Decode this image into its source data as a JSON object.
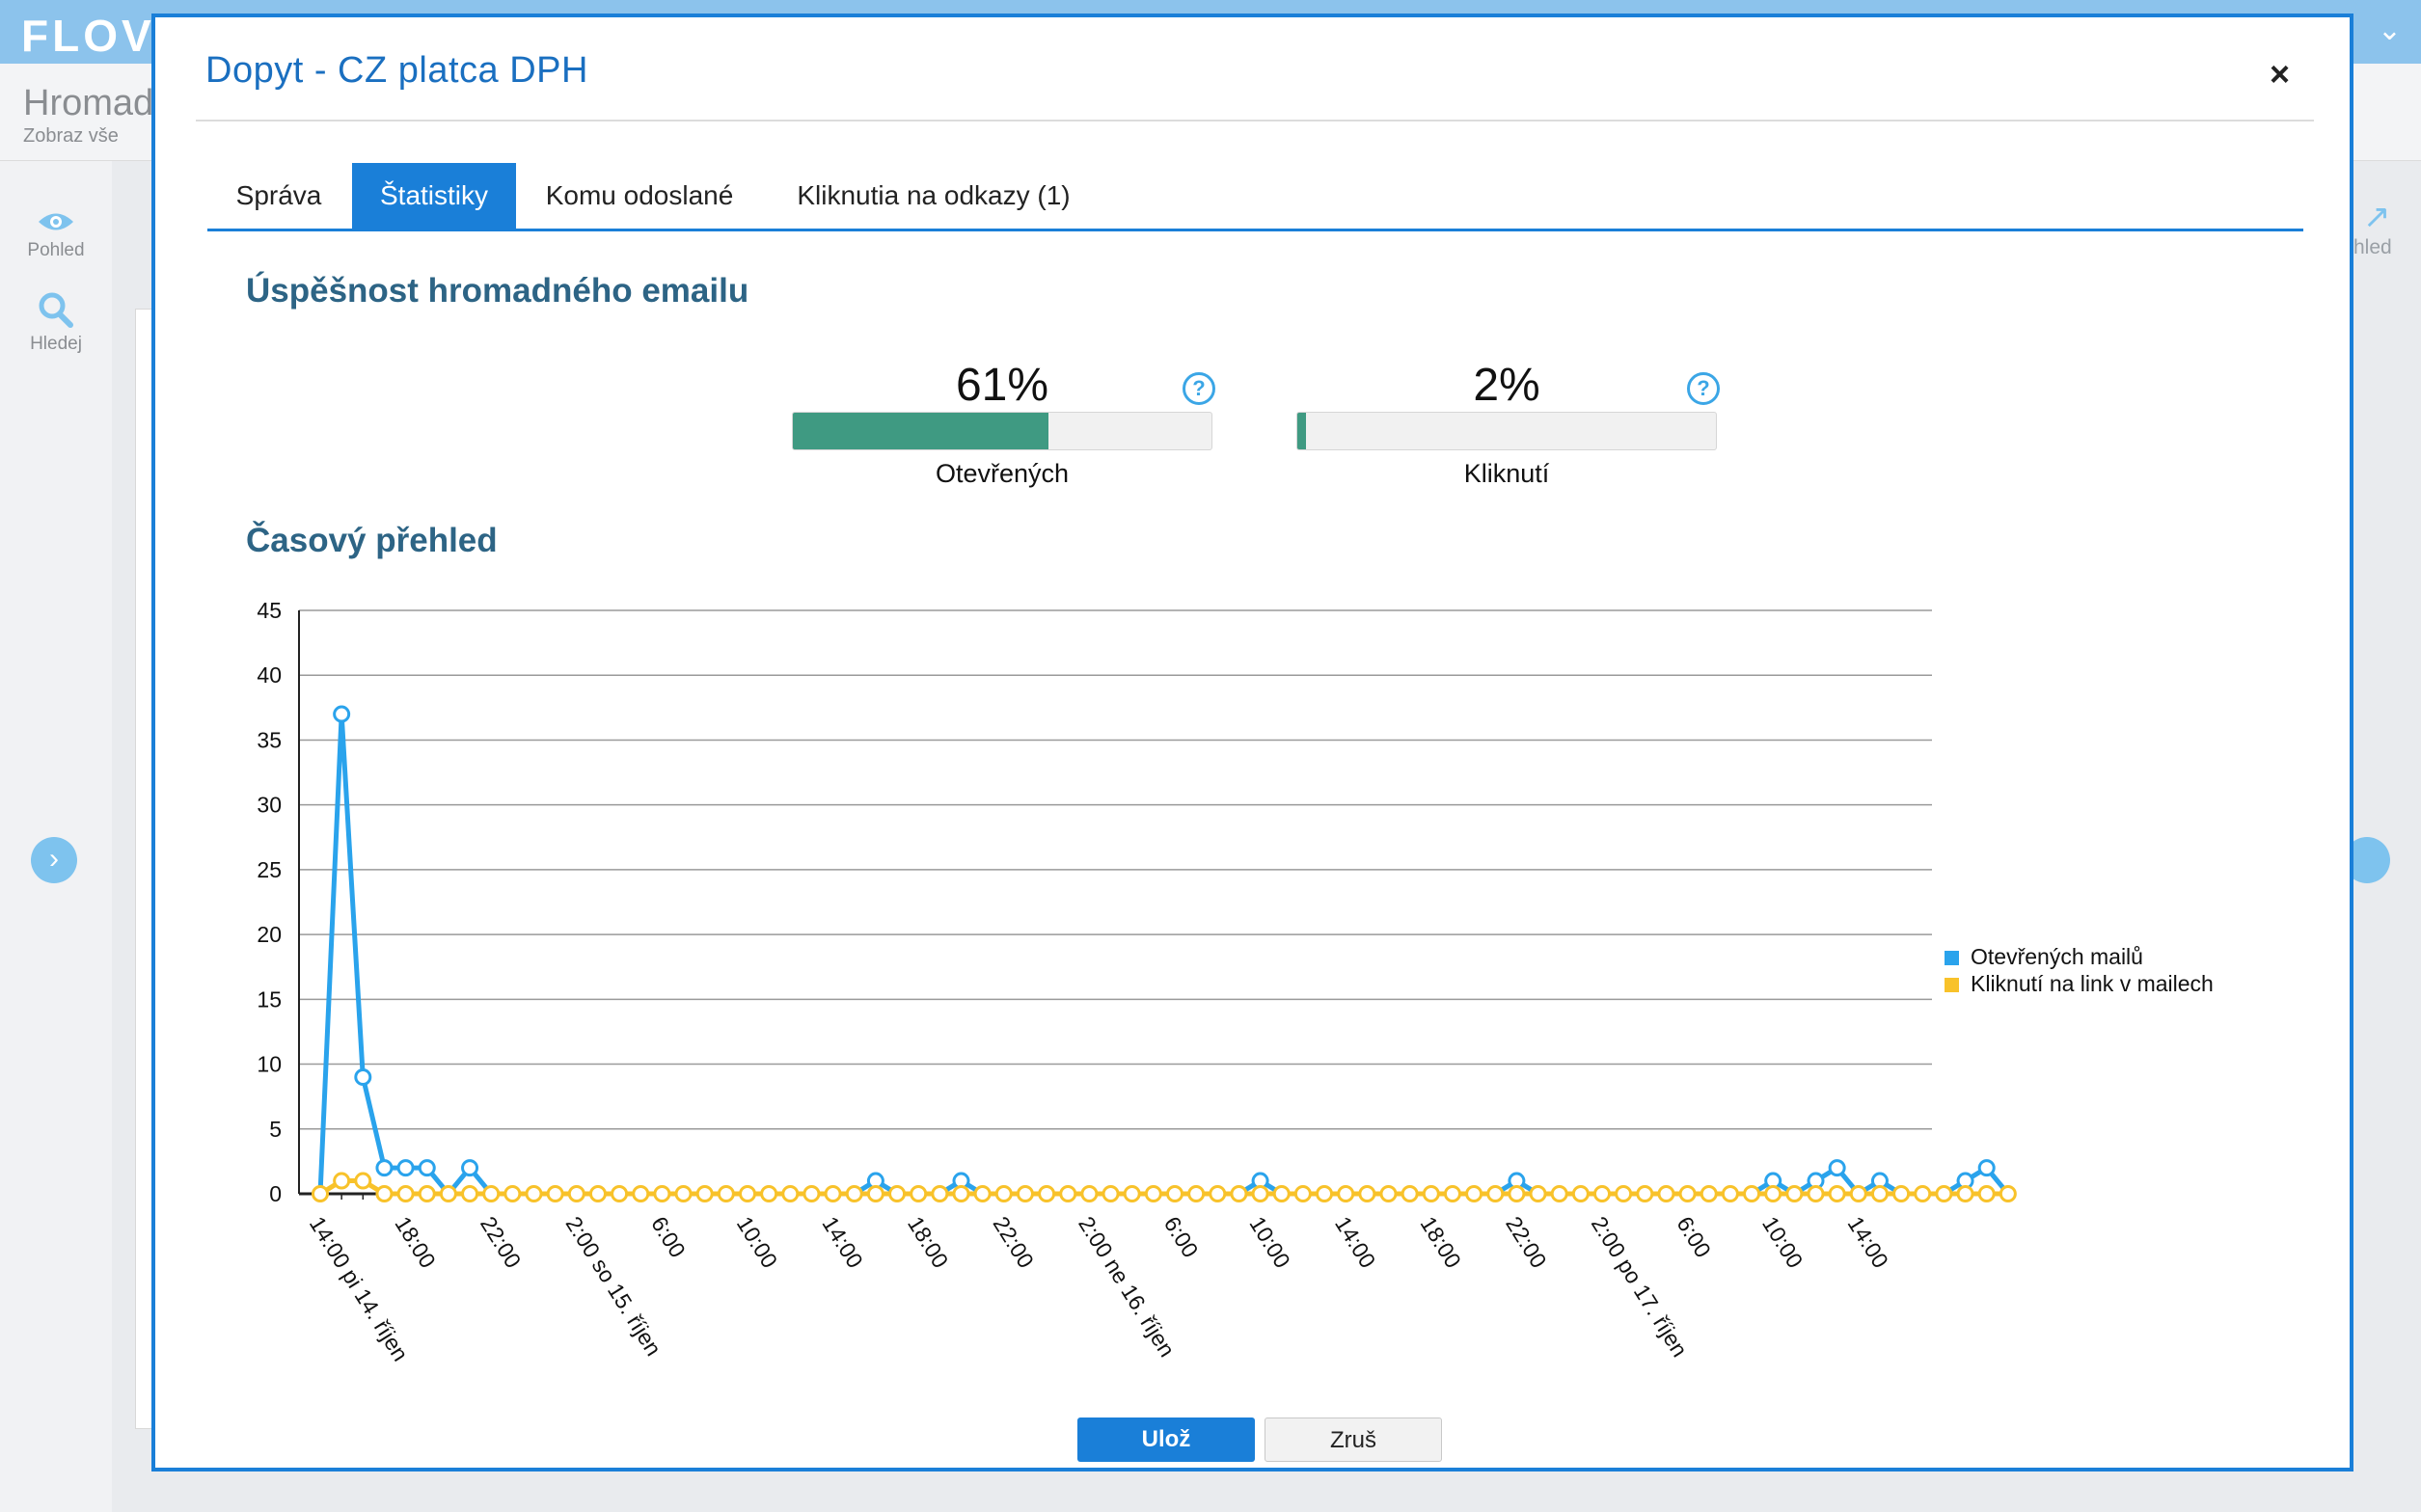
{
  "app": {
    "logo": "FLOV",
    "page_title": "Hromad",
    "subtitle": "Zobraz vše",
    "sidebar": [
      {
        "label": "Pohled",
        "icon": "eye-icon"
      },
      {
        "label": "Hledej",
        "icon": "search-icon"
      }
    ],
    "right_label": "hled"
  },
  "modal": {
    "title": "Dopyt - CZ platca DPH",
    "close": "×",
    "tabs": [
      {
        "label": "Správa",
        "active": false
      },
      {
        "label": "Štatistiky",
        "active": true
      },
      {
        "label": "Komu odoslané",
        "active": false
      },
      {
        "label": "Kliknutia na odkazy (1)",
        "active": false
      }
    ],
    "success_title": "Úspěšnost hromadného emailu",
    "stats": [
      {
        "value": "61%",
        "fraction": 0.61,
        "label": "Otevřených",
        "help": "?"
      },
      {
        "value": "2%",
        "fraction": 0.02,
        "label": "Kliknutí",
        "help": "?"
      }
    ],
    "timeline_title": "Časový přehled",
    "buttons": {
      "save": "Ulož",
      "cancel": "Zruš"
    }
  },
  "colors": {
    "accent": "#1a7fd8",
    "progress": "#3f9a82",
    "series_open": "#2aa3ec",
    "series_click": "#f8c22a",
    "title": "#2d6485"
  },
  "chart_data": {
    "type": "line",
    "ylim": [
      0,
      45
    ],
    "yticks": [
      0,
      5,
      10,
      15,
      20,
      25,
      30,
      35,
      40,
      45
    ],
    "x_tick_labels": [
      "14:00 pi 14. říjen",
      "18:00",
      "22:00",
      "2:00 so 15. říjen",
      "6:00",
      "10:00",
      "14:00",
      "18:00",
      "22:00",
      "2:00 ne 16. říjen",
      "6:00",
      "10:00",
      "14:00",
      "18:00",
      "22:00",
      "2:00 po 17. říjen",
      "6:00",
      "10:00",
      "14:00"
    ],
    "x_interval": "1 hour",
    "grid": true,
    "legend": "right",
    "series": [
      {
        "name": "Otevřených mailů",
        "values": [
          0,
          37,
          9,
          2,
          2,
          2,
          0,
          2,
          0,
          0,
          0,
          0,
          0,
          0,
          0,
          0,
          0,
          0,
          0,
          0,
          0,
          0,
          0,
          0,
          0,
          0,
          1,
          0,
          0,
          0,
          1,
          0,
          0,
          0,
          0,
          0,
          0,
          0,
          0,
          0,
          0,
          0,
          0,
          0,
          1,
          0,
          0,
          0,
          0,
          0,
          0,
          0,
          0,
          0,
          0,
          0,
          1,
          0,
          0,
          0,
          0,
          0,
          0,
          0,
          0,
          0,
          0,
          0,
          1,
          0,
          1,
          2,
          0,
          1,
          0,
          0,
          0,
          1,
          2,
          0
        ]
      },
      {
        "name": "Kliknutí na link v mailech",
        "values": [
          0,
          1,
          1,
          0,
          0,
          0,
          0,
          0,
          0,
          0,
          0,
          0,
          0,
          0,
          0,
          0,
          0,
          0,
          0,
          0,
          0,
          0,
          0,
          0,
          0,
          0,
          0,
          0,
          0,
          0,
          0,
          0,
          0,
          0,
          0,
          0,
          0,
          0,
          0,
          0,
          0,
          0,
          0,
          0,
          0,
          0,
          0,
          0,
          0,
          0,
          0,
          0,
          0,
          0,
          0,
          0,
          0,
          0,
          0,
          0,
          0,
          0,
          0,
          0,
          0,
          0,
          0,
          0,
          0,
          0,
          0,
          0,
          0,
          0,
          0,
          0,
          0,
          0,
          0,
          0
        ]
      }
    ]
  }
}
